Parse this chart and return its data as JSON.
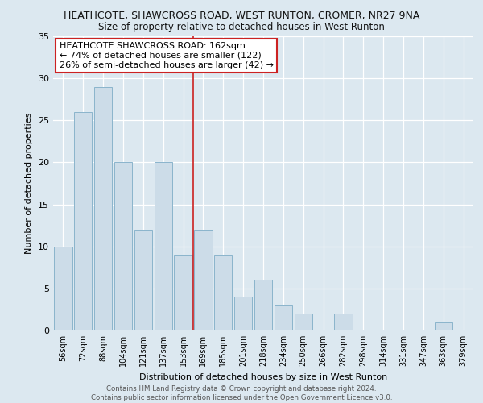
{
  "title1": "HEATHCOTE, SHAWCROSS ROAD, WEST RUNTON, CROMER, NR27 9NA",
  "title2": "Size of property relative to detached houses in West Runton",
  "xlabel": "Distribution of detached houses by size in West Runton",
  "ylabel": "Number of detached properties",
  "categories": [
    "56sqm",
    "72sqm",
    "88sqm",
    "104sqm",
    "121sqm",
    "137sqm",
    "153sqm",
    "169sqm",
    "185sqm",
    "201sqm",
    "218sqm",
    "234sqm",
    "250sqm",
    "266sqm",
    "282sqm",
    "298sqm",
    "314sqm",
    "331sqm",
    "347sqm",
    "363sqm",
    "379sqm"
  ],
  "values": [
    10,
    26,
    29,
    20,
    12,
    20,
    9,
    12,
    9,
    4,
    6,
    3,
    2,
    0,
    2,
    0,
    0,
    0,
    0,
    1,
    0
  ],
  "bar_color": "#ccdce8",
  "bar_edge_color": "#8ab4cc",
  "marker_color": "#cc2222",
  "annotation_title": "HEATHCOTE SHAWCROSS ROAD: 162sqm",
  "annotation_line2": "← 74% of detached houses are smaller (122)",
  "annotation_line3": "26% of semi-detached houses are larger (42) →",
  "annotation_box_color": "#ffffff",
  "annotation_box_edge": "#cc2222",
  "footer1": "Contains HM Land Registry data © Crown copyright and database right 2024.",
  "footer2": "Contains public sector information licensed under the Open Government Licence v3.0.",
  "bg_color": "#dce8f0",
  "ylim": [
    0,
    35
  ],
  "yticks": [
    0,
    5,
    10,
    15,
    20,
    25,
    30,
    35
  ]
}
